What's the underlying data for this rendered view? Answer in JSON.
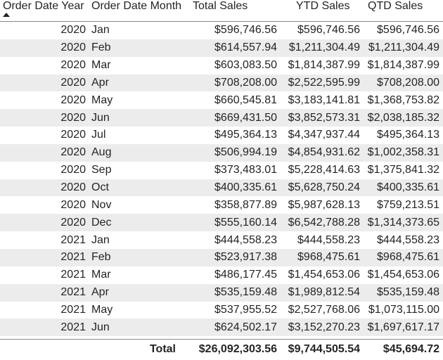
{
  "columns": {
    "year": "Order Date Year",
    "month": "Order Date Month",
    "total_sales": "Total Sales",
    "ytd_sales": "YTD Sales",
    "qtd_sales": "QTD Sales"
  },
  "rows": [
    {
      "year": "2020",
      "month": "Jan",
      "total": "$596,746.56",
      "ytd": "$596,746.56",
      "qtd": "$596,746.56"
    },
    {
      "year": "2020",
      "month": "Feb",
      "total": "$614,557.94",
      "ytd": "$1,211,304.49",
      "qtd": "$1,211,304.49"
    },
    {
      "year": "2020",
      "month": "Mar",
      "total": "$603,083.50",
      "ytd": "$1,814,387.99",
      "qtd": "$1,814,387.99"
    },
    {
      "year": "2020",
      "month": "Apr",
      "total": "$708,208.00",
      "ytd": "$2,522,595.99",
      "qtd": "$708,208.00"
    },
    {
      "year": "2020",
      "month": "May",
      "total": "$660,545.81",
      "ytd": "$3,183,141.81",
      "qtd": "$1,368,753.82"
    },
    {
      "year": "2020",
      "month": "Jun",
      "total": "$669,431.50",
      "ytd": "$3,852,573.31",
      "qtd": "$2,038,185.32"
    },
    {
      "year": "2020",
      "month": "Jul",
      "total": "$495,364.13",
      "ytd": "$4,347,937.44",
      "qtd": "$495,364.13"
    },
    {
      "year": "2020",
      "month": "Aug",
      "total": "$506,994.19",
      "ytd": "$4,854,931.62",
      "qtd": "$1,002,358.31"
    },
    {
      "year": "2020",
      "month": "Sep",
      "total": "$373,483.01",
      "ytd": "$5,228,414.63",
      "qtd": "$1,375,841.32"
    },
    {
      "year": "2020",
      "month": "Oct",
      "total": "$400,335.61",
      "ytd": "$5,628,750.24",
      "qtd": "$400,335.61"
    },
    {
      "year": "2020",
      "month": "Nov",
      "total": "$358,877.89",
      "ytd": "$5,987,628.13",
      "qtd": "$759,213.51"
    },
    {
      "year": "2020",
      "month": "Dec",
      "total": "$555,160.14",
      "ytd": "$6,542,788.28",
      "qtd": "$1,314,373.65"
    },
    {
      "year": "2021",
      "month": "Jan",
      "total": "$444,558.23",
      "ytd": "$444,558.23",
      "qtd": "$444,558.23"
    },
    {
      "year": "2021",
      "month": "Feb",
      "total": "$523,917.38",
      "ytd": "$968,475.61",
      "qtd": "$968,475.61"
    },
    {
      "year": "2021",
      "month": "Mar",
      "total": "$486,177.45",
      "ytd": "$1,454,653.06",
      "qtd": "$1,454,653.06"
    },
    {
      "year": "2021",
      "month": "Apr",
      "total": "$535,159.48",
      "ytd": "$1,989,812.54",
      "qtd": "$535,159.48"
    },
    {
      "year": "2021",
      "month": "May",
      "total": "$537,955.52",
      "ytd": "$2,527,768.06",
      "qtd": "$1,073,115.00"
    },
    {
      "year": "2021",
      "month": "Jun",
      "total": "$624,502.17",
      "ytd": "$3,152,270.23",
      "qtd": "$1,697,617.17"
    }
  ],
  "totals": {
    "label": "Total",
    "total": "$26,092,303.56",
    "ytd": "$9,744,505.54",
    "qtd": "$45,694.72"
  },
  "sort": {
    "column": "year",
    "direction": "ascending",
    "icon": "sort-ascending-icon"
  }
}
